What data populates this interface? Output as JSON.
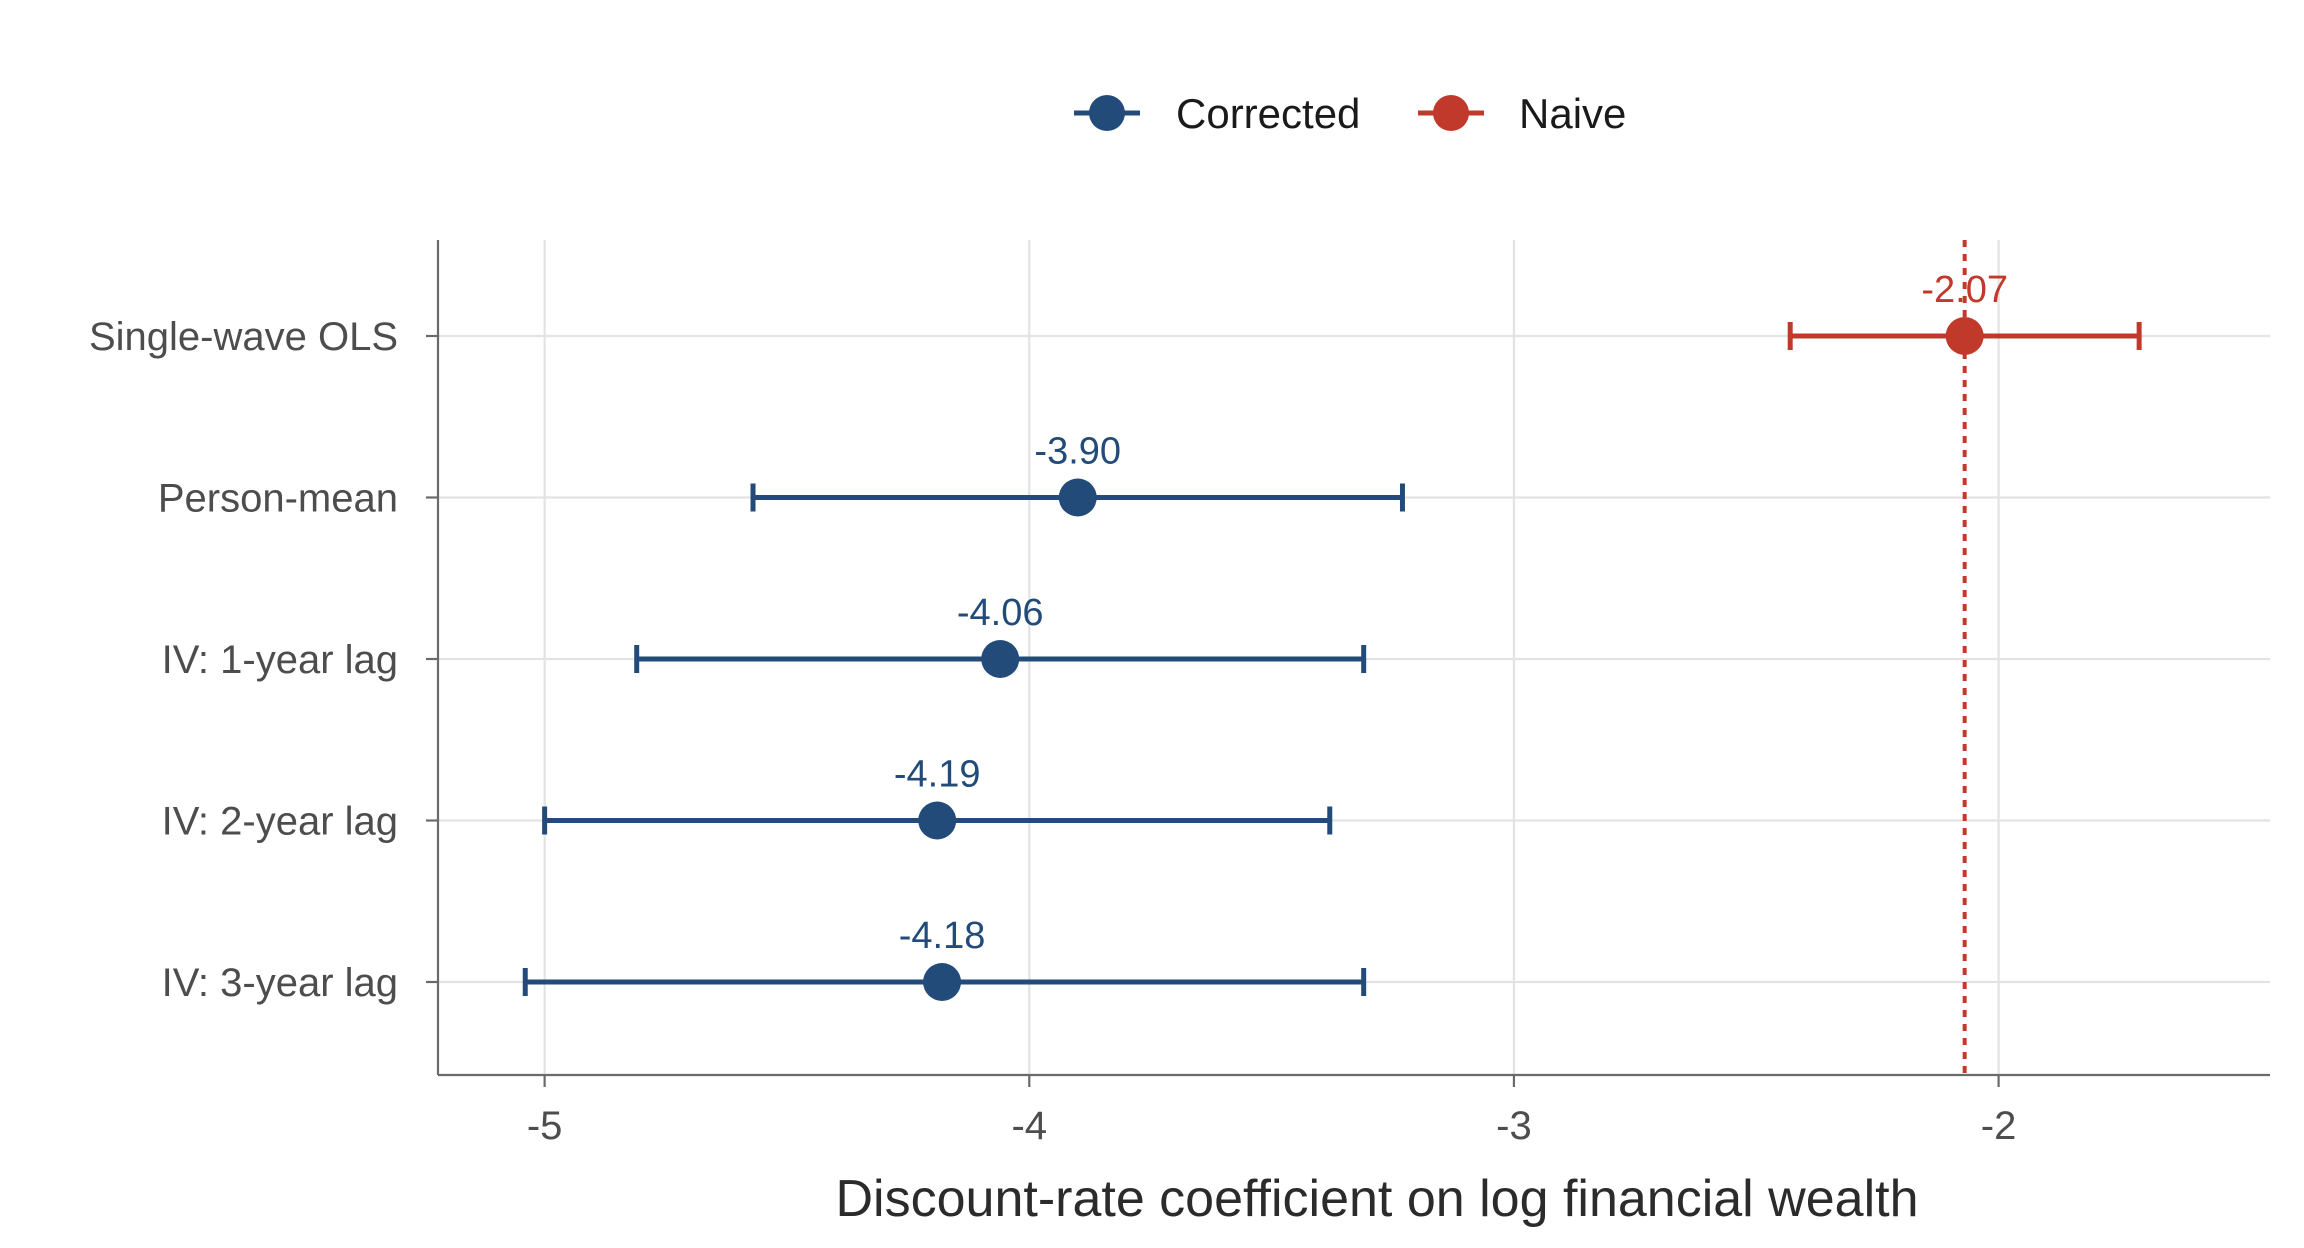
{
  "colors": {
    "corrected": "#224b7a",
    "naive": "#c0392b"
  },
  "legend": {
    "placement": "top",
    "items": [
      {
        "key": "corrected",
        "label": "Corrected"
      },
      {
        "key": "naive",
        "label": "Naive"
      }
    ]
  },
  "chart_data": {
    "type": "scatter",
    "subtype": "coefficient-plot-with-error-bars",
    "xlabel": "Discount-rate coefficient on log financial wealth",
    "xlim": [
      -5.22,
      -1.44
    ],
    "xticks": [
      -5,
      -4,
      -3,
      -2
    ],
    "xtick_labels": [
      "-5",
      "-4",
      "-3",
      "-2"
    ],
    "grid": true,
    "reference_line": {
      "x": -2.07,
      "style": "dotted",
      "series": "naive"
    },
    "categories": [
      "Single-wave OLS",
      "Person-mean",
      "IV: 1-year lag",
      "IV: 2-year lag",
      "IV: 3-year lag"
    ],
    "points": [
      {
        "category": "Single-wave OLS",
        "series": "naive",
        "estimate": -2.07,
        "lower": -2.43,
        "upper": -1.71,
        "label": "-2.07"
      },
      {
        "category": "Person-mean",
        "series": "corrected",
        "estimate": -3.9,
        "lower": -4.57,
        "upper": -3.23,
        "label": "-3.90"
      },
      {
        "category": "IV: 1-year lag",
        "series": "corrected",
        "estimate": -4.06,
        "lower": -4.81,
        "upper": -3.31,
        "label": "-4.06"
      },
      {
        "category": "IV: 2-year lag",
        "series": "corrected",
        "estimate": -4.19,
        "lower": -5.0,
        "upper": -3.38,
        "label": "-4.19"
      },
      {
        "category": "IV: 3-year lag",
        "series": "corrected",
        "estimate": -4.18,
        "lower": -5.04,
        "upper": -3.31,
        "label": "-4.18"
      }
    ]
  }
}
